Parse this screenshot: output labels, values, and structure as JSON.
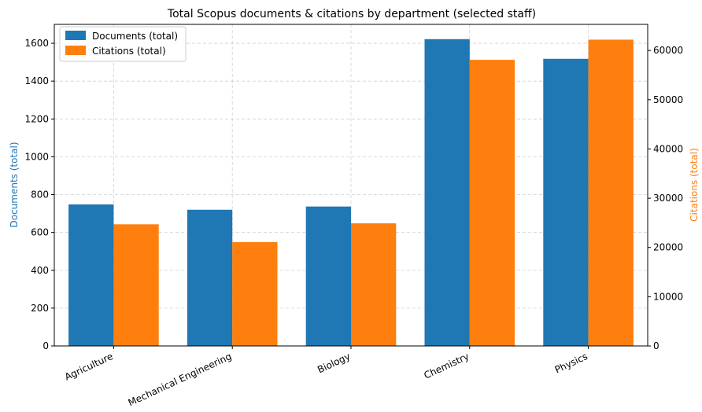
{
  "chart_data": {
    "type": "bar",
    "title": "Total Scopus documents & citations by department (selected staff)",
    "categories": [
      "Agriculture",
      "Mechanical Engineering",
      "Biology",
      "Chemistry",
      "Physics"
    ],
    "series": [
      {
        "name": "Documents (total)",
        "axis": "left",
        "color": "#1f77b4",
        "values": [
          748,
          720,
          737,
          1622,
          1518
        ]
      },
      {
        "name": "Citations (total)",
        "axis": "right",
        "color": "#ff7f0e",
        "values": [
          24700,
          21100,
          24900,
          58100,
          62200
        ]
      }
    ],
    "ylabel_left": "Documents (total)",
    "ylabel_right": "Citations (total)",
    "ylim_left": [
      0,
      1700
    ],
    "ylim_right": [
      0,
      65300
    ],
    "yticks_left": [
      "0",
      "200",
      "400",
      "600",
      "800",
      "1000",
      "1200",
      "1400",
      "1600"
    ],
    "yticks_right": [
      "0",
      "10000",
      "20000",
      "30000",
      "40000",
      "50000",
      "60000"
    ],
    "grid": true,
    "legend_position": "top-left"
  }
}
